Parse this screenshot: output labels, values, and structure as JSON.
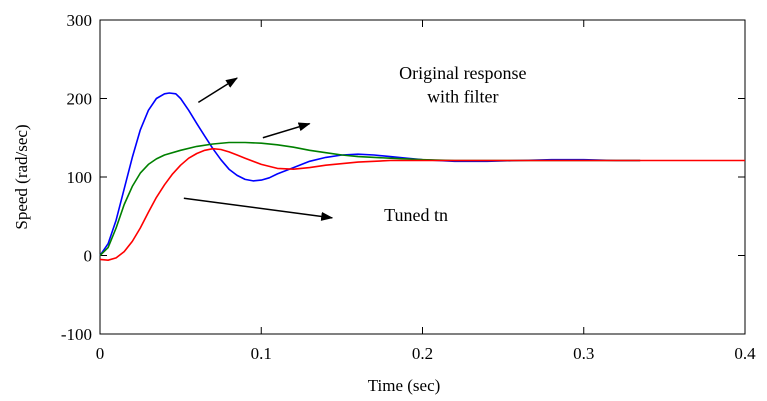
{
  "chart_data": {
    "type": "line",
    "title": "",
    "xlabel": "Time (sec)",
    "ylabel": "Speed (rad/sec)",
    "xlim": [
      0,
      0.4
    ],
    "ylim": [
      -100,
      300
    ],
    "xticks": [
      0,
      0.1,
      0.2,
      0.3,
      0.4
    ],
    "xtick_labels": [
      "0",
      "0.1",
      "0.2",
      "0.3",
      "0.4"
    ],
    "yticks": [
      -100,
      0,
      100,
      200,
      300
    ],
    "ytick_labels": [
      "-100",
      "0",
      "100",
      "200",
      "300"
    ],
    "grid": false,
    "series": [
      {
        "color": "#0000ff",
        "x": [
          0,
          0.005,
          0.01,
          0.015,
          0.02,
          0.025,
          0.03,
          0.035,
          0.04,
          0.043,
          0.047,
          0.05,
          0.055,
          0.06,
          0.065,
          0.07,
          0.075,
          0.08,
          0.085,
          0.09,
          0.095,
          0.1,
          0.105,
          0.11,
          0.12,
          0.13,
          0.14,
          0.15,
          0.16,
          0.17,
          0.18,
          0.19,
          0.2,
          0.22,
          0.24,
          0.26,
          0.28,
          0.3,
          0.32,
          0.335
        ],
        "y": [
          0,
          15,
          45,
          85,
          125,
          160,
          185,
          200,
          206,
          207,
          206,
          200,
          185,
          168,
          152,
          136,
          122,
          110,
          102,
          97,
          95,
          96,
          99,
          104,
          112,
          120,
          125,
          128,
          129,
          128,
          126,
          124,
          122,
          120,
          120,
          121,
          122,
          122,
          121,
          121
        ]
      },
      {
        "color": "#008000",
        "x": [
          0,
          0.005,
          0.01,
          0.015,
          0.02,
          0.025,
          0.03,
          0.035,
          0.04,
          0.05,
          0.06,
          0.07,
          0.08,
          0.09,
          0.1,
          0.11,
          0.12,
          0.13,
          0.14,
          0.15,
          0.16,
          0.18,
          0.2,
          0.22,
          0.24,
          0.26,
          0.28,
          0.3,
          0.32,
          0.335
        ],
        "y": [
          0,
          10,
          35,
          65,
          88,
          105,
          116,
          123,
          128,
          134,
          139,
          142,
          144,
          144,
          143,
          141,
          138,
          134,
          131,
          128,
          126,
          124,
          122,
          121,
          121,
          121,
          121,
          121,
          121,
          121
        ]
      },
      {
        "color": "#ff0000",
        "x": [
          0,
          0.005,
          0.01,
          0.015,
          0.02,
          0.025,
          0.03,
          0.035,
          0.04,
          0.045,
          0.05,
          0.055,
          0.06,
          0.065,
          0.07,
          0.075,
          0.08,
          0.085,
          0.09,
          0.1,
          0.11,
          0.12,
          0.13,
          0.14,
          0.16,
          0.18,
          0.2,
          0.25,
          0.3,
          0.35,
          0.4
        ],
        "y": [
          -5,
          -6,
          -3,
          5,
          18,
          35,
          55,
          74,
          90,
          104,
          115,
          124,
          130,
          134,
          136,
          135,
          132,
          128,
          124,
          116,
          111,
          110,
          112,
          115,
          119,
          121,
          121,
          121,
          121,
          121,
          121
        ]
      }
    ],
    "annotations": [
      {
        "text": "Original response",
        "x": 0.225,
        "y": 225
      },
      {
        "text": "with filter",
        "x": 0.225,
        "y": 195
      },
      {
        "text": "Tuned tn",
        "x": 0.196,
        "y": 44
      }
    ],
    "arrows": [
      {
        "from": [
          0.061,
          195
        ],
        "to": [
          0.085,
          226
        ]
      },
      {
        "from": [
          0.101,
          150
        ],
        "to": [
          0.13,
          168
        ]
      },
      {
        "from": [
          0.052,
          73
        ],
        "to": [
          0.144,
          48
        ]
      }
    ]
  }
}
